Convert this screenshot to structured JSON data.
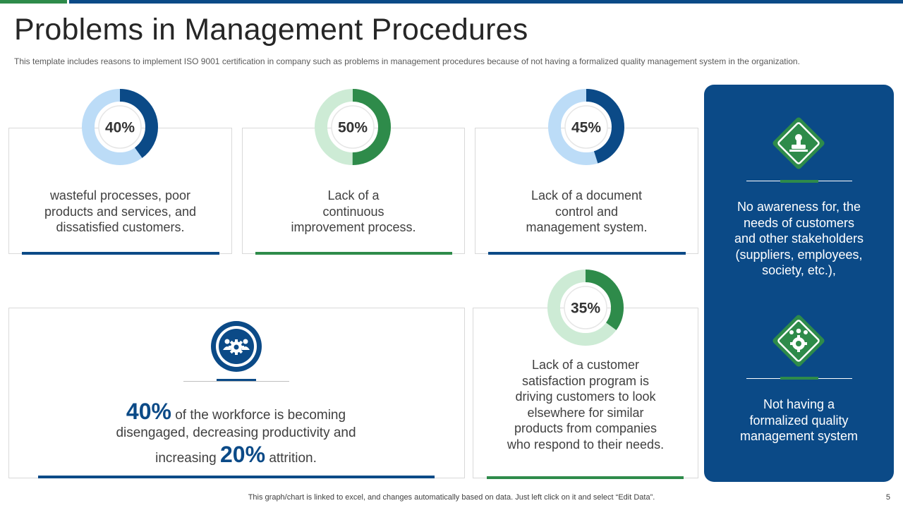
{
  "title": "Problems in Management Procedures",
  "subtitle": "This template includes reasons to implement ISO 9001 certification in company such as problems in management procedures because of not having a formalized quality management system in the organization.",
  "colors": {
    "blue": "#0b4a87",
    "green": "#2e8b4a",
    "light_blue": "#bcdcf7",
    "light_green": "#cdebd5"
  },
  "chart_data": [
    {
      "type": "pie",
      "variant": "donut",
      "value": 40,
      "label": "40%",
      "color": "#0b4a87",
      "track": "#bcdcf7",
      "description": "wasteful processes, poor products and services, and dissatisfied customers.",
      "lines": [
        "wasteful processes, poor",
        "products and services, and",
        "dissatisfied customers."
      ]
    },
    {
      "type": "pie",
      "variant": "donut",
      "value": 50,
      "label": "50%",
      "color": "#2e8b4a",
      "track": "#cdebd5",
      "description": "Lack of a continuous improvement process.",
      "lines": [
        "Lack of a",
        "continuous",
        "improvement process."
      ]
    },
    {
      "type": "pie",
      "variant": "donut",
      "value": 45,
      "label": "45%",
      "color": "#0b4a87",
      "track": "#bcdcf7",
      "description": "Lack of a document control and management system.",
      "lines": [
        "Lack of a document",
        "control and",
        "management system."
      ]
    },
    {
      "type": "pie",
      "variant": "donut",
      "value": 35,
      "label": "35%",
      "color": "#2e8b4a",
      "track": "#cdebd5",
      "description": "Lack of a customer satisfaction program is driving customers to look elsewhere for similar products from companies who respond to their needs.",
      "lines": [
        "Lack of a customer",
        "satisfaction program is",
        "driving customers to look",
        "elsewhere for similar",
        "products from companies",
        "who respond to their needs."
      ]
    }
  ],
  "workforce": {
    "icon": "team-gear-icon",
    "pct1": "40%",
    "text1": "of the workforce is becoming",
    "text2": "disengaged, decreasing productivity and",
    "text3a": "increasing",
    "pct2": "20%",
    "text3b": "attrition."
  },
  "side_panel": {
    "items": [
      {
        "icon": "stamp-icon",
        "lines": [
          "No awareness for, the",
          "needs of customers",
          "and other stakeholders",
          "(suppliers, employees,",
          "society, etc.),"
        ]
      },
      {
        "icon": "team-gear-icon",
        "lines": [
          "Not having a",
          "formalized quality",
          "management system"
        ]
      }
    ]
  },
  "footer": {
    "note": "This graph/chart is linked to excel, and changes automatically based on data. Just left click on it and select “Edit Data”.",
    "page": "5"
  }
}
